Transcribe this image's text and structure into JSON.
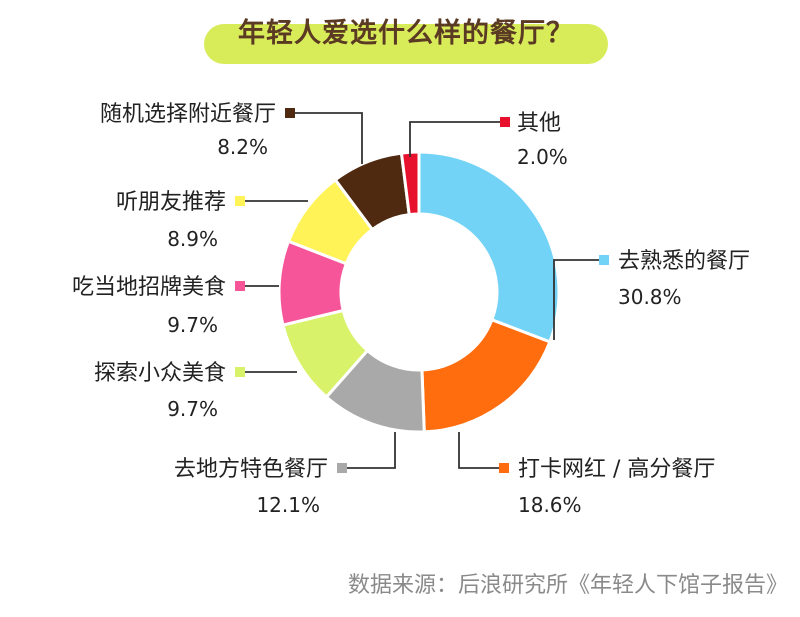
{
  "chart_data": {
    "type": "pie",
    "title": "年轻人爱选什么样的餐厅？",
    "slices": [
      {
        "label": "去熟悉的餐厅",
        "value": 30.8,
        "value_label": "30.8%",
        "color": "#72d3f7"
      },
      {
        "label": "打卡网红 / 高分餐厅",
        "value": 18.6,
        "value_label": "18.6%",
        "color": "#ff6d0f"
      },
      {
        "label": "去地方特色餐厅",
        "value": 12.1,
        "value_label": "12.1%",
        "color": "#a9a9a9"
      },
      {
        "label": "探索小众美食",
        "value": 9.7,
        "value_label": "9.7%",
        "color": "#d8f269"
      },
      {
        "label": "吃当地招牌美食",
        "value": 9.7,
        "value_label": "9.7%",
        "color": "#f7559a"
      },
      {
        "label": "听朋友推荐",
        "value": 8.9,
        "value_label": "8.9%",
        "color": "#fff357"
      },
      {
        "label": "随机选择附近餐厅",
        "value": 8.2,
        "value_label": "8.2%",
        "color": "#4f2a10"
      },
      {
        "label": "其他",
        "value": 2.0,
        "value_label": "2.0%",
        "color": "#e8112d"
      }
    ]
  },
  "source": "数据来源：后浪研究所《年轻人下馆子报告》"
}
